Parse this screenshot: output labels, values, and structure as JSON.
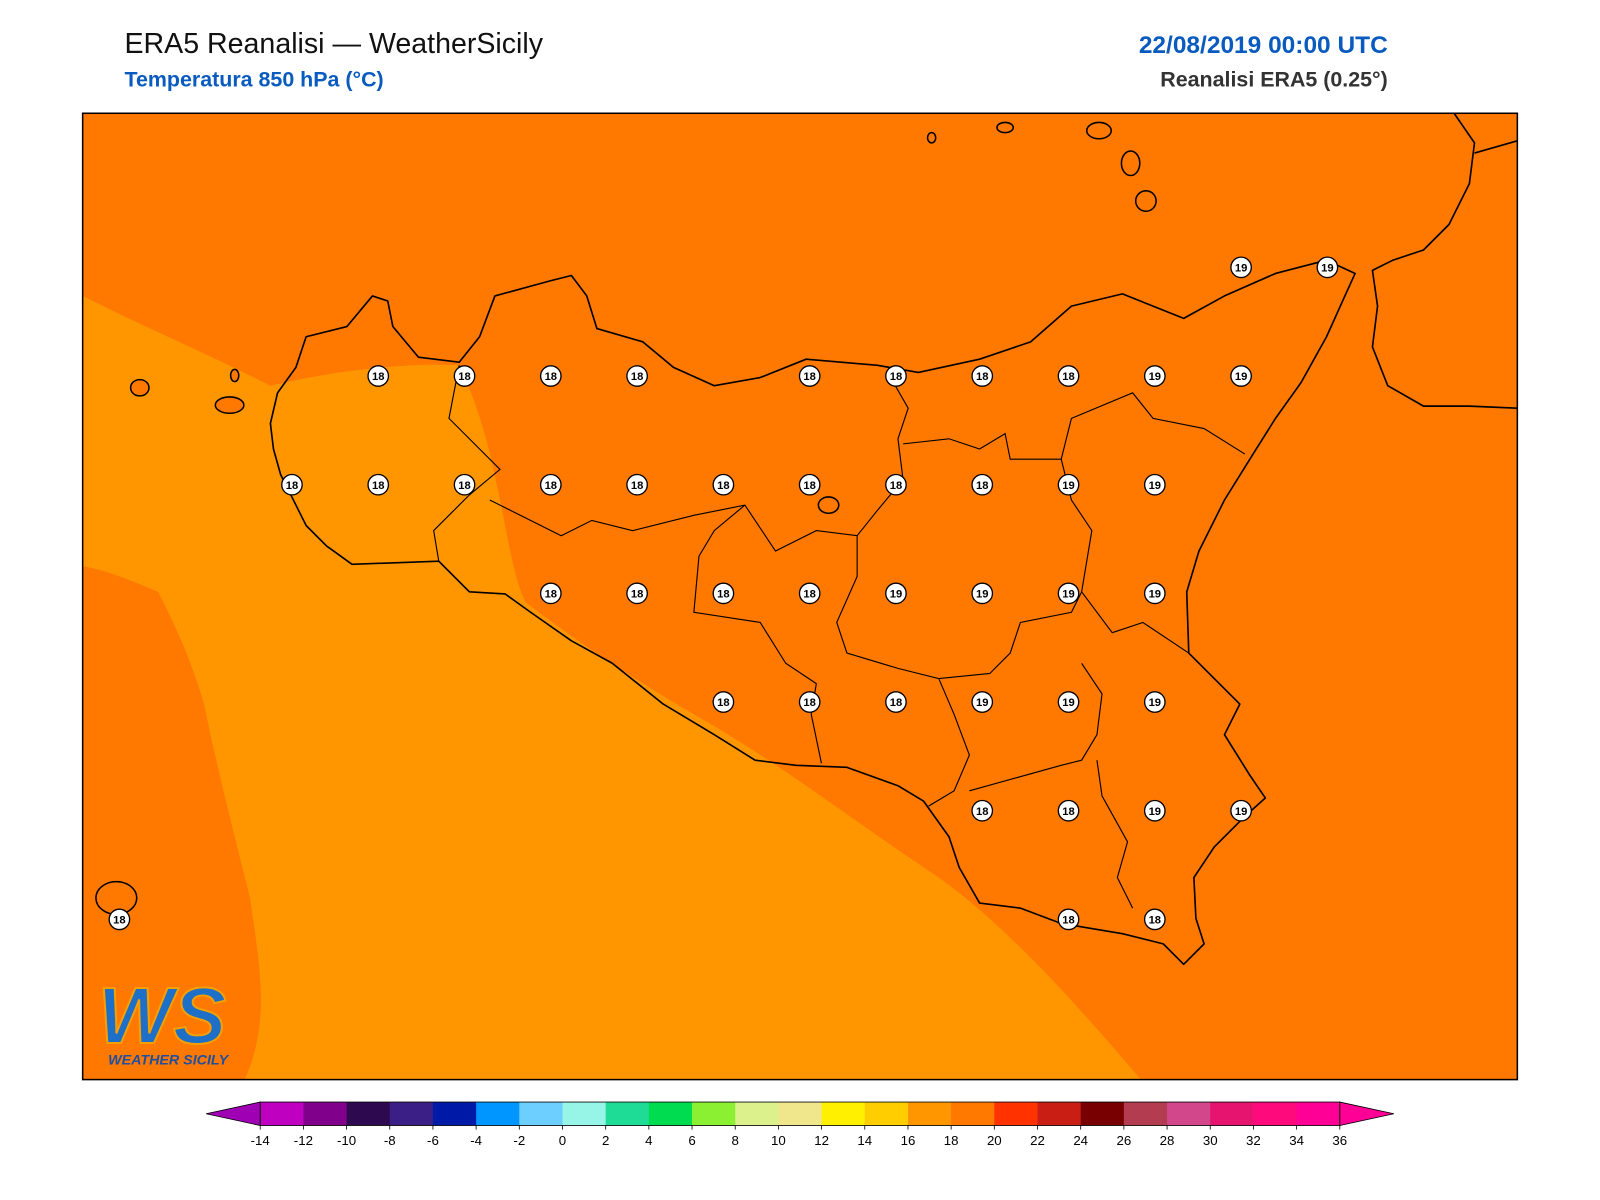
{
  "header": {
    "title": "ERA5 Reanalisi — WeatherSicily",
    "subtitle": "Temperatura 850 hPa (°C)",
    "datetime": "22/08/2019 00:00 UTC",
    "source": "Reanalisi ERA5 (0.25°)"
  },
  "point_grid": [
    [
      null,
      null,
      null,
      null,
      null,
      null,
      null,
      null,
      null,
      null,
      null,
      null,
      null,
      19,
      19
    ],
    [
      null,
      null,
      null,
      18,
      18,
      18,
      18,
      null,
      18,
      18,
      18,
      18,
      19,
      19,
      null
    ],
    [
      null,
      null,
      18,
      18,
      18,
      18,
      18,
      18,
      18,
      18,
      18,
      19,
      19,
      null,
      null
    ],
    [
      null,
      null,
      null,
      null,
      null,
      18,
      18,
      18,
      18,
      19,
      19,
      19,
      19,
      null,
      null
    ],
    [
      null,
      null,
      null,
      null,
      null,
      null,
      null,
      18,
      18,
      18,
      19,
      19,
      19,
      null,
      null
    ],
    [
      null,
      null,
      null,
      null,
      null,
      null,
      null,
      null,
      null,
      null,
      18,
      18,
      19,
      19,
      null
    ],
    [
      18,
      null,
      null,
      null,
      null,
      null,
      null,
      null,
      null,
      null,
      null,
      18,
      18,
      null,
      null
    ]
  ],
  "colorbar": {
    "ticks": [
      -14,
      -12,
      -10,
      -8,
      -6,
      -4,
      -2,
      0,
      2,
      4,
      6,
      8,
      10,
      12,
      14,
      16,
      18,
      20,
      22,
      24,
      26,
      28,
      30,
      32,
      34,
      36
    ],
    "colors": [
      "#c000c0",
      "#80008c",
      "#2d0a4f",
      "#3b1f87",
      "#001aa8",
      "#0096ff",
      "#6ccfff",
      "#96f5e6",
      "#1edc96",
      "#00dc50",
      "#8cf032",
      "#dcf08c",
      "#f0e68c",
      "#fff000",
      "#ffcd00",
      "#ff9600",
      "#ff7800",
      "#ff3200",
      "#c81e14",
      "#780000",
      "#b43c50",
      "#d2468c",
      "#e6146e",
      "#ff0a7d",
      "#ff0096"
    ],
    "extend_colors": [
      "#a000b4",
      "#ff0096"
    ]
  },
  "logo": {
    "mark": "WS",
    "text": "WEATHER SICILY"
  }
}
